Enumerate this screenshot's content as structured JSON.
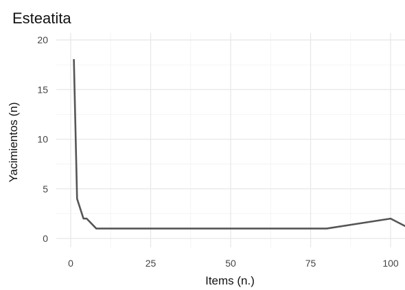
{
  "chart_data": {
    "type": "line",
    "title": "Esteatita",
    "xlabel": "Items (n.)",
    "ylabel": "Yacimientos (n)",
    "xlim": [
      -4.5,
      104.5
    ],
    "ylim": [
      -0.9,
      20.7
    ],
    "xticks": [
      0,
      25,
      50,
      75,
      100
    ],
    "xtick_labels": [
      "0",
      "25",
      "50",
      "75",
      "100"
    ],
    "yticks": [
      0,
      5,
      10,
      15,
      20
    ],
    "ytick_labels": [
      "0",
      "5",
      "10",
      "15",
      "20"
    ],
    "grid": true,
    "legend": "none",
    "series": [
      {
        "x": [
          1,
          2,
          3,
          4,
          5,
          8,
          80,
          100,
          106
        ],
        "y": [
          18,
          4,
          3,
          2,
          2,
          1,
          1,
          2,
          1
        ],
        "color": "#555555"
      }
    ]
  }
}
